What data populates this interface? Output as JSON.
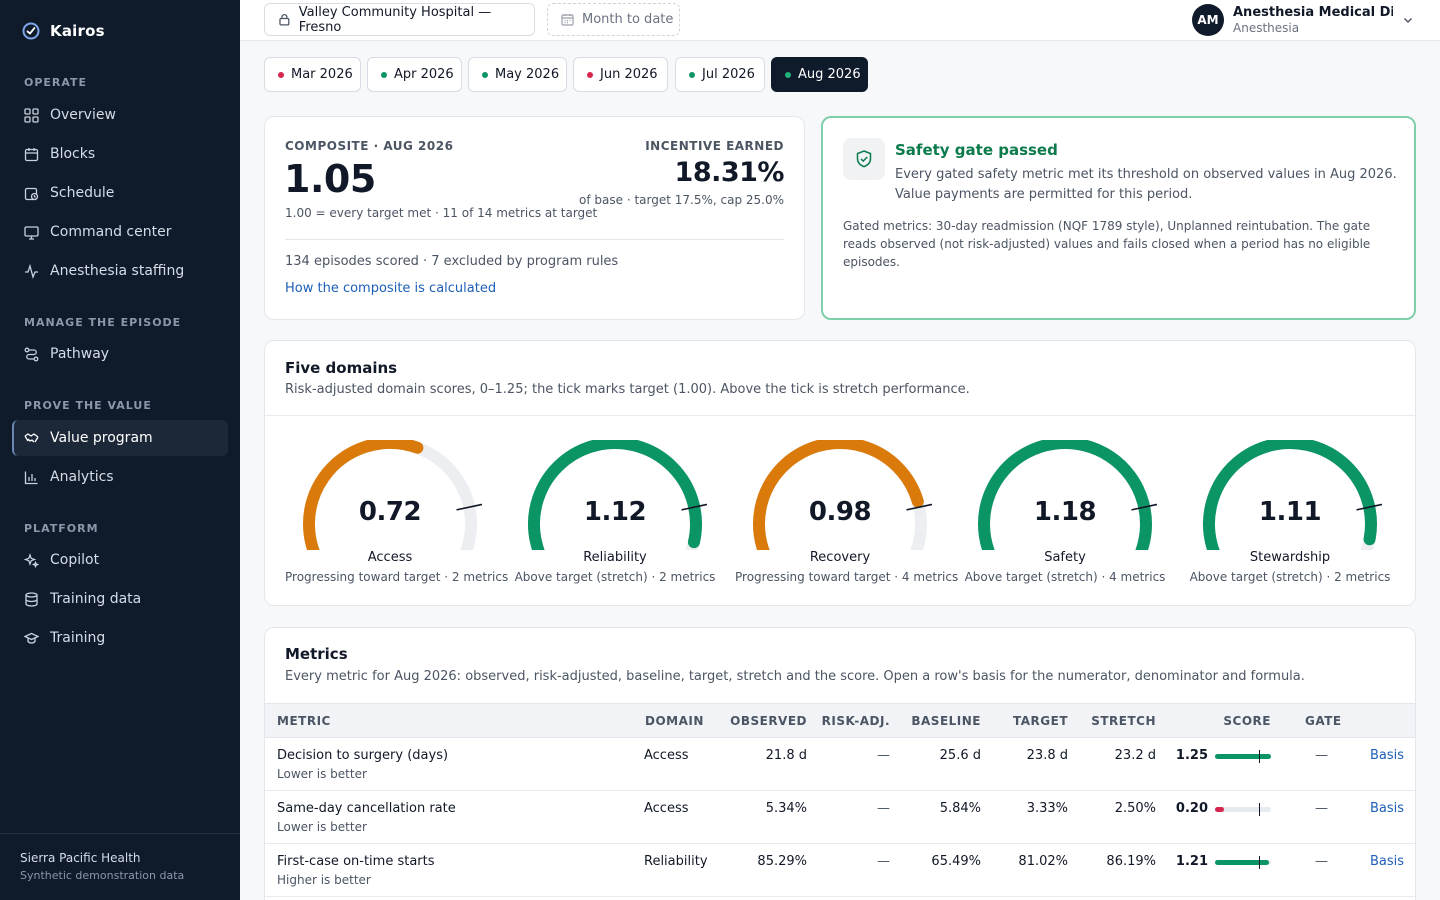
{
  "brand": {
    "name": "Kairos"
  },
  "sidebar": {
    "sections": [
      {
        "label": "OPERATE",
        "items": [
          "Overview",
          "Blocks",
          "Schedule",
          "Command center",
          "Anesthesia staffing"
        ]
      },
      {
        "label": "MANAGE THE EPISODE",
        "items": [
          "Pathway"
        ]
      },
      {
        "label": "PROVE THE VALUE",
        "items": [
          "Value program",
          "Analytics"
        ]
      },
      {
        "label": "PLATFORM",
        "items": [
          "Copilot",
          "Training data",
          "Training"
        ]
      }
    ],
    "active_item": "Value program",
    "footer": {
      "org": "Sierra Pacific Health",
      "note": "Synthetic demonstration data"
    }
  },
  "topbar": {
    "hospital": "Valley Community Hospital — Fresno",
    "period": "Month to date",
    "user": {
      "initials": "AM",
      "name": "Anesthesia Medical Dire...",
      "role": "Anesthesia"
    }
  },
  "months": [
    {
      "label": "Mar 2026",
      "status": "red"
    },
    {
      "label": "Apr 2026",
      "status": "green"
    },
    {
      "label": "May 2026",
      "status": "green"
    },
    {
      "label": "Jun 2026",
      "status": "red"
    },
    {
      "label": "Jul 2026",
      "status": "green"
    },
    {
      "label": "Aug 2026",
      "status": "green",
      "active": true
    }
  ],
  "composite": {
    "eyebrow": "COMPOSITE · AUG 2026",
    "value": "1.05",
    "note": "1.00 = every target met · 11 of 14 metrics at target",
    "incentive_label": "INCENTIVE EARNED",
    "incentive_value": "18.31%",
    "incentive_note": "of base · target 17.5%, cap 25.0%",
    "episodes": "134 episodes scored · 7 excluded by program rules",
    "link": "How the composite is calculated"
  },
  "gate": {
    "title": "Safety gate passed",
    "body": "Every gated safety metric met its threshold on observed values in Aug 2026. Value payments are permitted for this period.",
    "note": "Gated metrics: 30-day readmission (NQF 1789 style), Unplanned reintubation. The gate reads observed (not risk-adjusted) values and fails closed when a period has no eligible episodes."
  },
  "domains": {
    "title": "Five domains",
    "subtitle": "Risk-adjusted domain scores, 0–1.25; the tick marks target (1.00). Above the tick is stretch performance.",
    "max": 1.25,
    "target": 1.0,
    "items": [
      {
        "value": 0.72,
        "display": "0.72",
        "name": "Access",
        "note": "Progressing toward target · 2 metrics",
        "color": "#d97a0a"
      },
      {
        "value": 1.12,
        "display": "1.12",
        "name": "Reliability",
        "note": "Above target (stretch) · 2 metrics",
        "color": "#0b9464"
      },
      {
        "value": 0.98,
        "display": "0.98",
        "name": "Recovery",
        "note": "Progressing toward target · 4 metrics",
        "color": "#d97a0a"
      },
      {
        "value": 1.18,
        "display": "1.18",
        "name": "Safety",
        "note": "Above target (stretch) · 4 metrics",
        "color": "#0b9464"
      },
      {
        "value": 1.11,
        "display": "1.11",
        "name": "Stewardship",
        "note": "Above target (stretch) · 2 metrics",
        "color": "#0b9464"
      }
    ]
  },
  "metrics": {
    "title": "Metrics",
    "subtitle": "Every metric for Aug 2026: observed, risk-adjusted, baseline, target, stretch and the score. Open a row's basis for the numerator, denominator and formula.",
    "columns": [
      "METRIC",
      "DOMAIN",
      "OBSERVED",
      "RISK-ADJ.",
      "BASELINE",
      "TARGET",
      "STRETCH",
      "SCORE",
      "GATE"
    ],
    "rows": [
      {
        "metric": "Decision to surgery (days)",
        "direction": "Lower is better",
        "domain": "Access",
        "observed": "21.8 d",
        "risk_adj": "—",
        "baseline": "25.6 d",
        "target": "23.8 d",
        "stretch": "23.2 d",
        "score": "1.25",
        "score_value": 1.25,
        "score_color": "#0b9464",
        "gate": "—",
        "basis": "Basis"
      },
      {
        "metric": "Same-day cancellation rate",
        "direction": "Lower is better",
        "domain": "Access",
        "observed": "5.34%",
        "risk_adj": "—",
        "baseline": "5.84%",
        "target": "3.33%",
        "stretch": "2.50%",
        "score": "0.20",
        "score_value": 0.2,
        "score_color": "#d7264d",
        "gate": "—",
        "basis": "Basis"
      },
      {
        "metric": "First-case on-time starts",
        "direction": "Higher is better",
        "domain": "Reliability",
        "observed": "85.29%",
        "risk_adj": "—",
        "baseline": "65.49%",
        "target": "81.02%",
        "stretch": "86.19%",
        "score": "1.21",
        "score_value": 1.21,
        "score_color": "#0b9464",
        "gate": "—",
        "basis": "Basis"
      }
    ]
  }
}
